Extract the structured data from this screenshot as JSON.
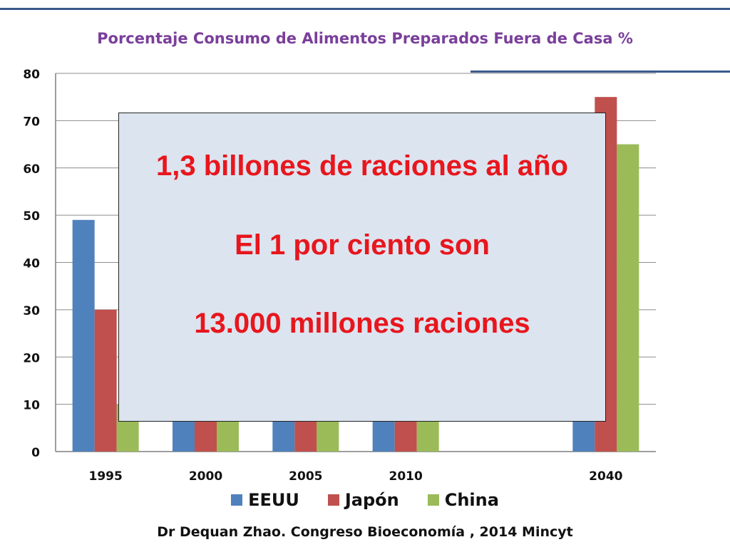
{
  "slide": {
    "title": "Porcentaje Consumo de Alimentos Preparados Fuera de Casa %",
    "footer": "Dr Dequan Zhao. Congreso Bioeconomía , 2014 Mincyt",
    "overlay_lines": [
      "1,3 billones de raciones al año",
      "El 1 por ciento son",
      "13.000 millones raciones"
    ]
  },
  "chart_data": {
    "type": "bar",
    "categories": [
      "1995",
      "2000",
      "2005",
      "2010",
      "",
      "2040"
    ],
    "series": [
      {
        "name": "EEUU",
        "color": "#4f81bd",
        "values": [
          49,
          10,
          10,
          10,
          null,
          10
        ]
      },
      {
        "name": "Japón",
        "color": "#c0504d",
        "values": [
          30,
          10,
          10,
          10,
          null,
          75
        ]
      },
      {
        "name": "China",
        "color": "#9bbb59",
        "values": [
          10,
          10,
          10,
          10,
          null,
          65
        ]
      }
    ],
    "ylim": [
      0,
      80
    ],
    "yticks": [
      "0",
      "10",
      "20",
      "30",
      "40",
      "50",
      "60",
      "70",
      "80"
    ],
    "grid": true,
    "legend_position": "bottom"
  }
}
